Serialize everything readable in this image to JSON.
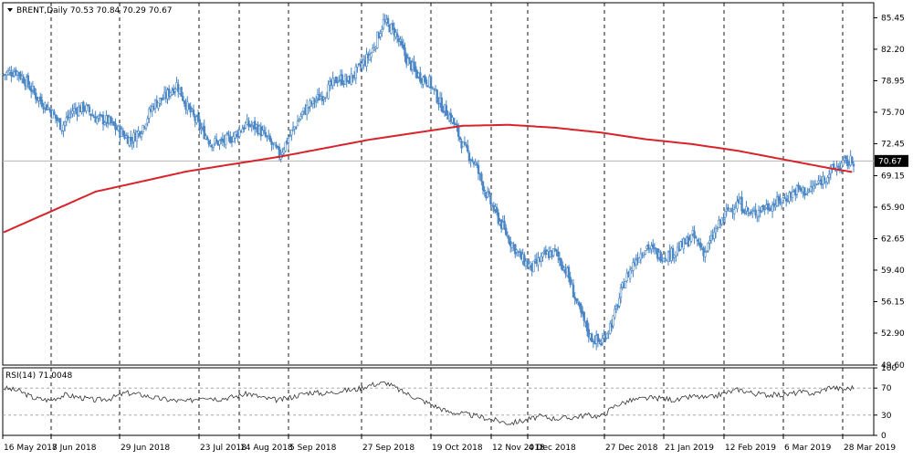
{
  "window": {
    "symbol": "BRENT",
    "timeframe": "Daily",
    "ohlc_text": "70.53 70.84 70.29 70.67"
  },
  "colors": {
    "candle": "#4a86c5",
    "ma": "#d8232a",
    "grid": "#000000",
    "price_line": "#b5b5b5",
    "price_label_bg": "#000000",
    "price_label_text": "#ffffff",
    "rsi_line": "#333333",
    "rsi_level": "#9a9a9a"
  },
  "current_price_label": "70.67",
  "rsi_panel": {
    "label": "RSI(14) 71.0048",
    "axis_labels": [
      "100",
      "70",
      "30",
      "0"
    ]
  },
  "chart_data": [
    {
      "type": "candlestick",
      "title": "BRENT,Daily",
      "y_ticks": [
        "85.45",
        "82.20",
        "78.95",
        "75.70",
        "72.45",
        "69.15",
        "65.90",
        "62.65",
        "59.40",
        "56.15",
        "52.90",
        "49.60"
      ],
      "ylim": [
        49.6,
        87.0
      ],
      "x_ticks": [
        "16 May 2018",
        "7 Jun 2018",
        "29 Jun 2018",
        "23 Jul 2018",
        "14 Aug 2018",
        "5 Sep 2018",
        "27 Sep 2018",
        "19 Oct 2018",
        "12 Nov 2018",
        "4 Dec 2018",
        "27 Dec 2018",
        "21 Jan 2019",
        "12 Feb 2019",
        "6 Mar 2019",
        "28 Mar 2019"
      ],
      "grid": "vertical dashed",
      "last_price": 70.67,
      "close_path": [
        [
          0,
          79.6
        ],
        [
          8,
          80.0
        ],
        [
          15,
          78.8
        ],
        [
          22,
          77.2
        ],
        [
          30,
          76.0
        ],
        [
          38,
          74.2
        ],
        [
          45,
          75.9
        ],
        [
          53,
          76.2
        ],
        [
          60,
          75.1
        ],
        [
          68,
          74.8
        ],
        [
          75,
          73.8
        ],
        [
          83,
          72.8
        ],
        [
          90,
          74.0
        ],
        [
          98,
          76.5
        ],
        [
          105,
          77.2
        ],
        [
          113,
          78.6
        ],
        [
          120,
          76.2
        ],
        [
          128,
          74.2
        ],
        [
          135,
          72.6
        ],
        [
          143,
          72.6
        ],
        [
          150,
          73.2
        ],
        [
          158,
          74.4
        ],
        [
          165,
          74.2
        ],
        [
          173,
          72.8
        ],
        [
          180,
          71.3
        ],
        [
          188,
          73.6
        ],
        [
          195,
          75.6
        ],
        [
          203,
          76.9
        ],
        [
          210,
          77.7
        ],
        [
          218,
          79.2
        ],
        [
          225,
          78.9
        ],
        [
          233,
          80.4
        ],
        [
          240,
          81.8
        ],
        [
          248,
          85.0
        ],
        [
          255,
          84.1
        ],
        [
          263,
          81.2
        ],
        [
          270,
          79.6
        ],
        [
          278,
          78.8
        ],
        [
          285,
          76.6
        ],
        [
          293,
          74.9
        ],
        [
          300,
          72.2
        ],
        [
          308,
          70.3
        ],
        [
          315,
          67.3
        ],
        [
          323,
          64.7
        ],
        [
          330,
          62.6
        ],
        [
          338,
          60.6
        ],
        [
          345,
          59.6
        ],
        [
          353,
          60.9
        ],
        [
          360,
          61.3
        ],
        [
          368,
          59.1
        ],
        [
          375,
          55.6
        ],
        [
          383,
          52.5
        ],
        [
          390,
          51.9
        ],
        [
          398,
          54.3
        ],
        [
          405,
          58.1
        ],
        [
          413,
          60.6
        ],
        [
          420,
          61.9
        ],
        [
          428,
          60.9
        ],
        [
          435,
          61.0
        ],
        [
          443,
          61.9
        ],
        [
          450,
          62.9
        ],
        [
          458,
          61.2
        ],
        [
          465,
          63.5
        ],
        [
          473,
          65.6
        ],
        [
          480,
          66.4
        ],
        [
          488,
          65.1
        ],
        [
          495,
          65.8
        ],
        [
          503,
          66.2
        ],
        [
          510,
          66.8
        ],
        [
          518,
          67.7
        ],
        [
          525,
          67.5
        ],
        [
          533,
          68.5
        ],
        [
          540,
          69.6
        ],
        [
          548,
          70.4
        ],
        [
          555,
          70.7
        ]
      ],
      "moving_average_path": [
        [
          0,
          63.3
        ],
        [
          60,
          67.5
        ],
        [
          120,
          69.6
        ],
        [
          180,
          71.1
        ],
        [
          240,
          72.9
        ],
        [
          300,
          74.3
        ],
        [
          330,
          74.4
        ],
        [
          360,
          74.1
        ],
        [
          390,
          73.6
        ],
        [
          420,
          72.9
        ],
        [
          450,
          72.4
        ],
        [
          480,
          71.7
        ],
        [
          510,
          70.8
        ],
        [
          540,
          69.9
        ],
        [
          555,
          69.5
        ]
      ]
    },
    {
      "type": "line",
      "title": "RSI(14) 71.0048",
      "ylim": [
        0,
        100
      ],
      "levels": [
        70,
        30
      ],
      "y_ticks": [
        "100",
        "70",
        "30",
        "0"
      ],
      "values_path": [
        [
          0,
          70
        ],
        [
          10,
          66
        ],
        [
          20,
          55
        ],
        [
          30,
          52
        ],
        [
          40,
          60
        ],
        [
          50,
          56
        ],
        [
          60,
          52
        ],
        [
          70,
          55
        ],
        [
          80,
          63
        ],
        [
          90,
          60
        ],
        [
          100,
          55
        ],
        [
          110,
          52
        ],
        [
          120,
          50
        ],
        [
          130,
          58
        ],
        [
          140,
          54
        ],
        [
          150,
          57
        ],
        [
          160,
          62
        ],
        [
          170,
          55
        ],
        [
          180,
          52
        ],
        [
          190,
          58
        ],
        [
          200,
          64
        ],
        [
          210,
          62
        ],
        [
          220,
          66
        ],
        [
          230,
          68
        ],
        [
          240,
          75
        ],
        [
          250,
          78
        ],
        [
          260,
          65
        ],
        [
          270,
          55
        ],
        [
          280,
          45
        ],
        [
          290,
          35
        ],
        [
          300,
          32
        ],
        [
          310,
          28
        ],
        [
          320,
          23
        ],
        [
          330,
          18
        ],
        [
          340,
          22
        ],
        [
          350,
          28
        ],
        [
          360,
          25
        ],
        [
          370,
          26
        ],
        [
          380,
          30
        ],
        [
          390,
          28
        ],
        [
          400,
          45
        ],
        [
          410,
          52
        ],
        [
          420,
          55
        ],
        [
          430,
          55
        ],
        [
          440,
          52
        ],
        [
          450,
          58
        ],
        [
          460,
          55
        ],
        [
          470,
          62
        ],
        [
          480,
          68
        ],
        [
          490,
          62
        ],
        [
          500,
          60
        ],
        [
          510,
          60
        ],
        [
          520,
          64
        ],
        [
          530,
          62
        ],
        [
          540,
          72
        ],
        [
          548,
          68
        ],
        [
          555,
          71
        ]
      ]
    }
  ]
}
